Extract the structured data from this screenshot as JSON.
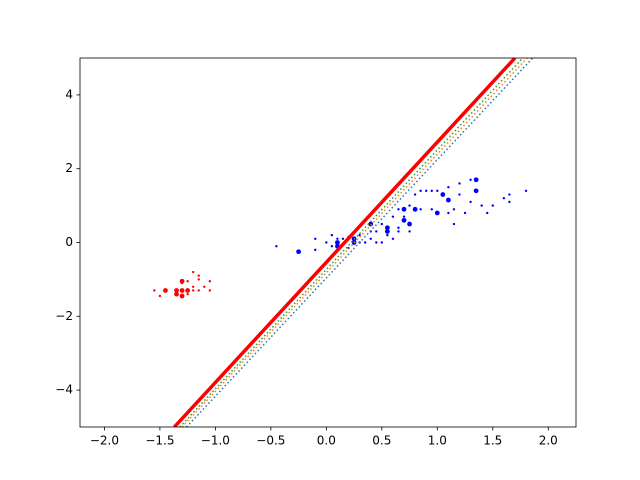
{
  "chart_data": {
    "type": "scatter",
    "xlim": [
      -2.22,
      2.25
    ],
    "ylim": [
      -5,
      5
    ],
    "xticks": [
      {
        "value": -2,
        "label": "−2.0"
      },
      {
        "value": -1.5,
        "label": "−1.5"
      },
      {
        "value": -1,
        "label": "−1.0"
      },
      {
        "value": -0.5,
        "label": "−0.5"
      },
      {
        "value": 0,
        "label": "0.0"
      },
      {
        "value": 0.5,
        "label": "0.5"
      },
      {
        "value": 1,
        "label": "1.0"
      },
      {
        "value": 1.5,
        "label": "1.5"
      },
      {
        "value": 2,
        "label": "2.0"
      }
    ],
    "yticks": [
      {
        "value": -4,
        "label": "−4"
      },
      {
        "value": -2,
        "label": "−2"
      },
      0,
      2,
      4
    ],
    "series": [
      {
        "color": "#ff0000",
        "x": [
          -1.2,
          -1.15,
          -1.15,
          -1.05,
          -1.25,
          -1.3,
          -1.2,
          -1.1,
          -1.05,
          -1.15,
          -1.55,
          -1.5,
          -1.25,
          -1.2,
          -1.3,
          -1.45,
          -1.35,
          -1.3,
          -1.25,
          -1.35,
          -1.3
        ],
        "values": [
          -0.8,
          -0.9,
          -1.0,
          -1.05,
          -1.05,
          -1.1,
          -1.2,
          -1.2,
          -1.3,
          -1.3,
          -1.3,
          -1.45,
          -1.4,
          -1.3,
          -1.05,
          -1.3,
          -1.3,
          -1.3,
          -1.3,
          -1.4,
          -1.45
        ],
        "sizes": [
          1,
          1,
          1,
          1,
          1,
          1,
          1,
          1,
          1,
          1,
          1,
          1,
          1,
          1,
          2,
          2,
          2,
          2,
          2,
          2,
          2
        ]
      },
      {
        "color": "#0000ff",
        "x": [
          -0.25,
          0.1,
          0.1,
          0.25,
          0.25,
          0.4,
          0.55,
          0.55,
          0.7,
          0.7,
          0.75,
          0.8,
          1.0,
          1.05,
          1.1,
          1.35,
          1.35,
          -0.45,
          -0.1,
          -0.1,
          0.0,
          0.05,
          0.1,
          0.15,
          0.2,
          0.3,
          0.3,
          0.35,
          0.4,
          0.4,
          0.45,
          0.45,
          0.5,
          0.5,
          0.6,
          0.6,
          0.65,
          0.65,
          0.65,
          0.75,
          0.75,
          0.8,
          0.85,
          0.85,
          0.9,
          0.95,
          0.95,
          1.0,
          1.1,
          1.1,
          1.15,
          1.15,
          1.2,
          1.2,
          1.25,
          1.3,
          1.3,
          1.4,
          1.45,
          1.5,
          1.6,
          1.65,
          1.65,
          1.8,
          0.7,
          0.55,
          0.2,
          0.05
        ],
        "values": [
          -0.25,
          -0.1,
          0.0,
          0.0,
          0.1,
          0.5,
          0.3,
          0.4,
          0.6,
          0.9,
          0.5,
          0.9,
          0.8,
          1.3,
          1.15,
          1.4,
          1.7,
          -0.1,
          0.1,
          -0.2,
          0.0,
          0.2,
          0.1,
          0.1,
          0.15,
          0.2,
          0.0,
          0.0,
          0.1,
          0.3,
          0.0,
          0.3,
          0.5,
          0.0,
          0.1,
          0.7,
          0.4,
          0.9,
          0.3,
          0.3,
          1.0,
          1.3,
          0.9,
          1.4,
          1.4,
          1.4,
          0.9,
          1.4,
          1.5,
          0.8,
          0.9,
          0.5,
          1.3,
          1.6,
          0.8,
          1.1,
          1.7,
          1.0,
          0.8,
          1.0,
          1.2,
          1.1,
          1.3,
          1.4,
          0.7,
          0.2,
          -0.15,
          -0.1
        ],
        "sizes": [
          2,
          2,
          2,
          2,
          2,
          2,
          2,
          2,
          2,
          2,
          2,
          2,
          2,
          2,
          2,
          2,
          2,
          1,
          1,
          1,
          1,
          1,
          1,
          1,
          1,
          1,
          1,
          1,
          1,
          1,
          1,
          1,
          1,
          1,
          1,
          1,
          1,
          1,
          1,
          1,
          1,
          1,
          1,
          1,
          1,
          1,
          1,
          1,
          1,
          1,
          1,
          1,
          1,
          1,
          1,
          1,
          1,
          1,
          1,
          1,
          1,
          1,
          1,
          1,
          1,
          1,
          1,
          1
        ]
      }
    ],
    "lines": [
      {
        "color": "#1f77b4",
        "dashed": true,
        "width": 1.5,
        "x": [
          -1.26,
          1.86
        ],
        "values": [
          -5,
          5
        ]
      },
      {
        "color": "#ff7f0e",
        "dashed": true,
        "width": 1.5,
        "x": [
          -1.3,
          1.81
        ],
        "values": [
          -5,
          5
        ]
      },
      {
        "color": "#2ca02c",
        "dashed": true,
        "width": 1.5,
        "x": [
          -1.32,
          1.77
        ],
        "values": [
          -5,
          5
        ]
      },
      {
        "color": "#ff0000",
        "dashed": false,
        "width": 3.5,
        "x": [
          -1.37,
          1.7
        ],
        "values": [
          -5,
          5
        ]
      }
    ]
  }
}
